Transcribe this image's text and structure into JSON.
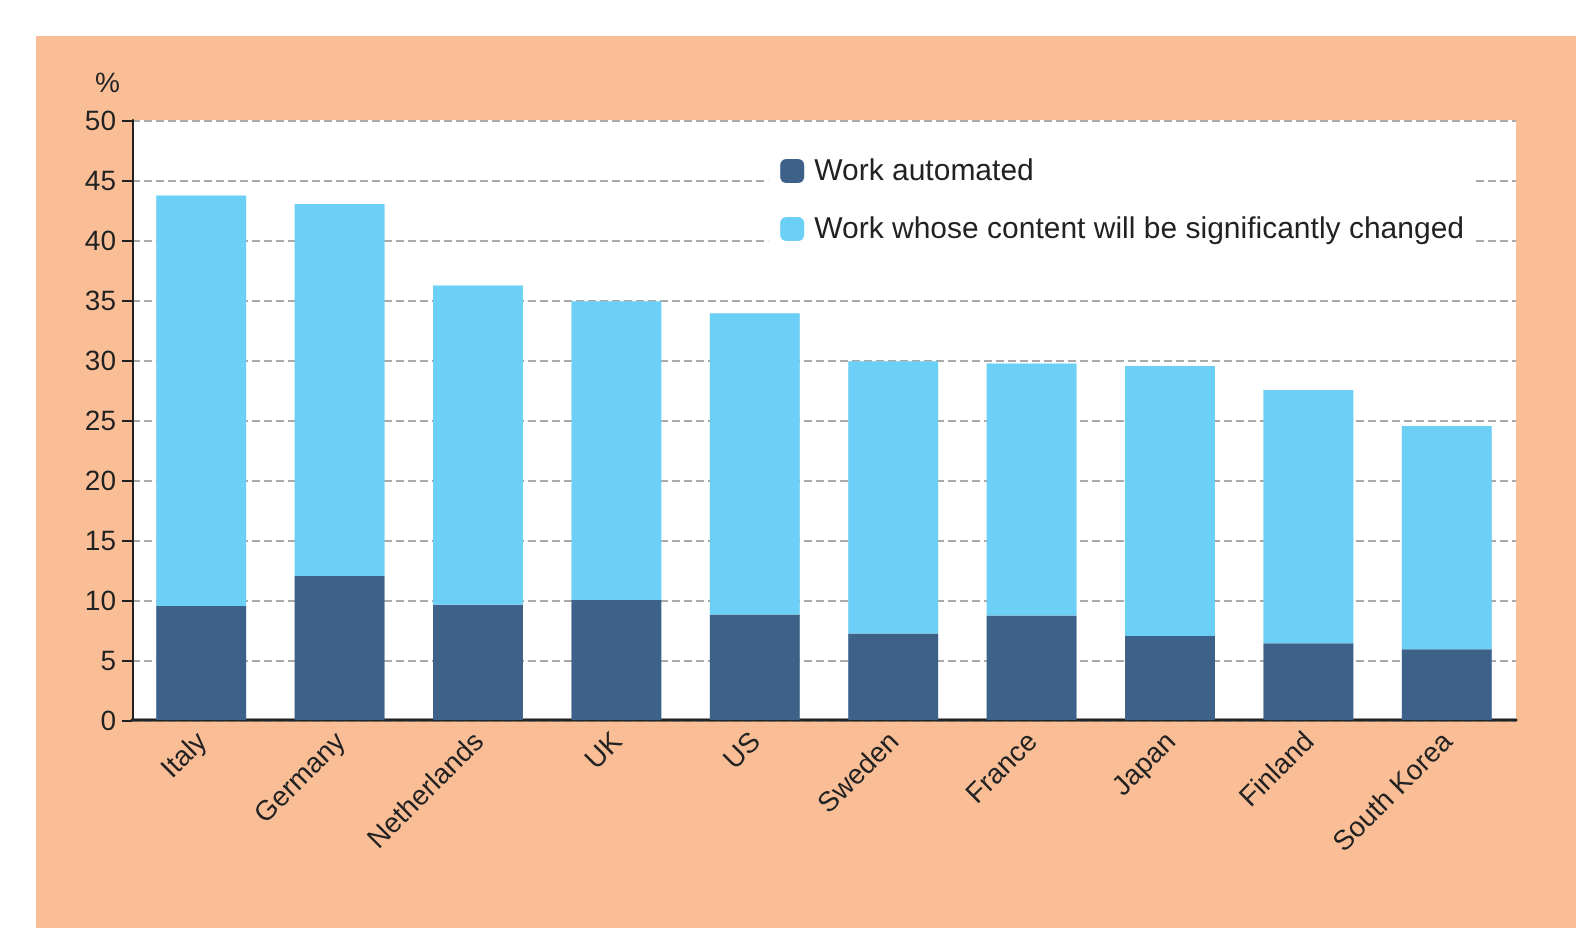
{
  "chart_data": {
    "type": "bar",
    "stacked": true,
    "ylabel": "%",
    "categories": [
      "Italy",
      "Germany",
      "Netherlands",
      "UK",
      "US",
      "Sweden",
      "France",
      "Japan",
      "Finland",
      "South Korea"
    ],
    "series": [
      {
        "name": "Work automated",
        "color": "#3d6189",
        "values": [
          9.5,
          12.0,
          9.6,
          10.0,
          8.8,
          7.2,
          8.7,
          7.0,
          6.4,
          5.9
        ]
      },
      {
        "name": "Work whose content will be significantly changed",
        "color": "#6ccff5",
        "values": [
          34.2,
          31.0,
          26.6,
          24.9,
          25.1,
          22.7,
          21.0,
          22.5,
          21.1,
          18.6
        ]
      }
    ],
    "ylim": [
      0,
      50
    ],
    "yticks": [
      0,
      5,
      10,
      15,
      20,
      25,
      30,
      35,
      40,
      45,
      50
    ],
    "grid": "y",
    "legend": "top right"
  }
}
